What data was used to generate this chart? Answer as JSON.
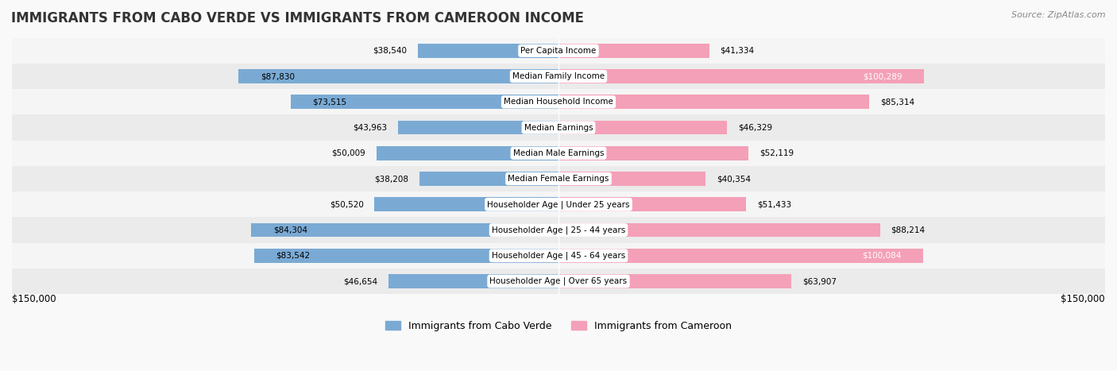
{
  "title": "IMMIGRANTS FROM CABO VERDE VS IMMIGRANTS FROM CAMEROON INCOME",
  "source": "Source: ZipAtlas.com",
  "categories": [
    "Per Capita Income",
    "Median Family Income",
    "Median Household Income",
    "Median Earnings",
    "Median Male Earnings",
    "Median Female Earnings",
    "Householder Age | Under 25 years",
    "Householder Age | 25 - 44 years",
    "Householder Age | 45 - 64 years",
    "Householder Age | Over 65 years"
  ],
  "cabo_verde": [
    38540,
    87830,
    73515,
    43963,
    50009,
    38208,
    50520,
    84304,
    83542,
    46654
  ],
  "cameroon": [
    41334,
    100289,
    85314,
    46329,
    52119,
    40354,
    51433,
    88214,
    100084,
    63907
  ],
  "cabo_verde_labels": [
    "$38,540",
    "$87,830",
    "$73,515",
    "$43,963",
    "$50,009",
    "$38,208",
    "$50,520",
    "$84,304",
    "$83,542",
    "$46,654"
  ],
  "cameroon_labels": [
    "$41,334",
    "$100,289",
    "$85,314",
    "$46,329",
    "$52,119",
    "$40,354",
    "$51,433",
    "$88,214",
    "$100,084",
    "$63,907"
  ],
  "cabo_verde_color": "#7aaad4",
  "cameroon_color": "#f4a0b8",
  "cabo_verde_color_dark": "#5b8ec4",
  "cameroon_color_dark": "#e87fa0",
  "max_val": 150000,
  "bar_height": 0.55,
  "bg_color": "#f5f5f5",
  "row_bg_color": "#efefef",
  "label_bg_color": "#ffffff",
  "xlabel_left": "$150,000",
  "xlabel_right": "$150,000",
  "legend_cabo_verde": "Immigrants from Cabo Verde",
  "legend_cameroon": "Immigrants from Cameroon"
}
